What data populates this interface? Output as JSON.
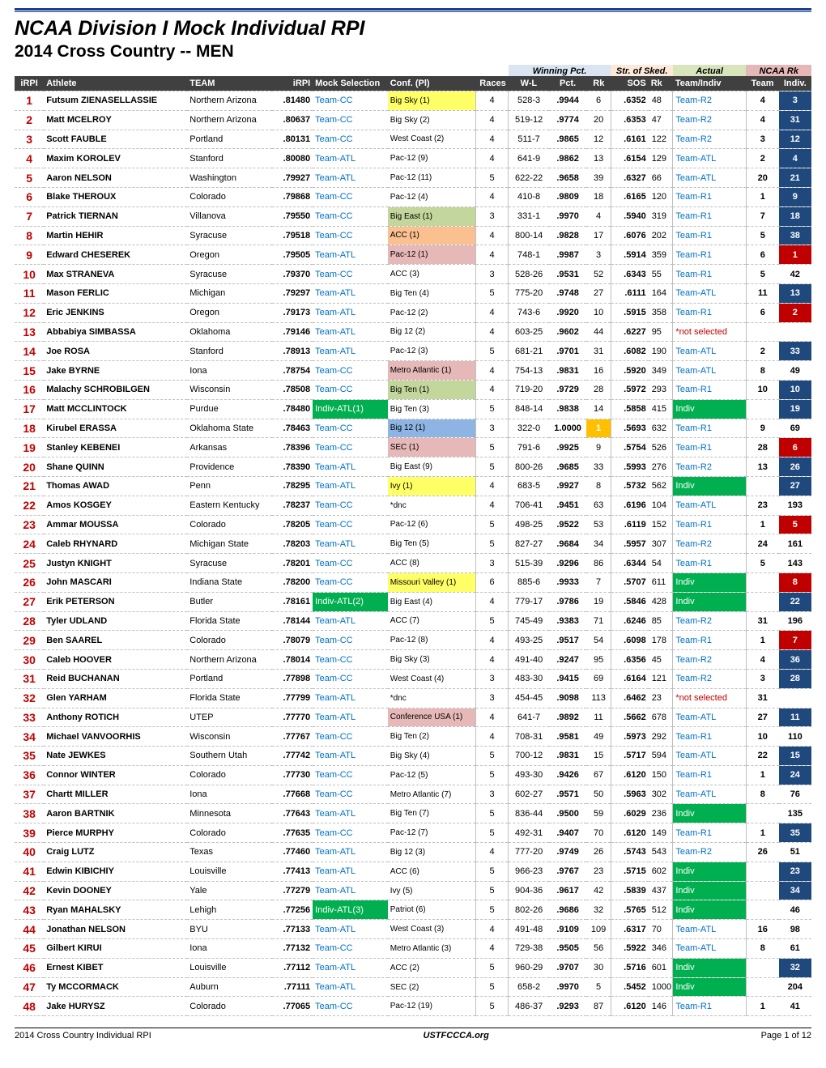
{
  "title": "NCAA Division I Mock Individual RPI",
  "subtitle": "2014 Cross Country -- MEN",
  "group_headers": {
    "winning": "Winning Pct.",
    "str": "Str. of Sked.",
    "actual": "Actual",
    "ncaa": "NCAA Rk"
  },
  "columns": [
    "iRPI",
    "Athlete",
    "TEAM",
    "iRPI",
    "Mock Selection",
    "Conf. (Pl)",
    "Races",
    "W-L",
    "Pct.",
    "Rk",
    "SOS",
    "Rk",
    "Team/Indiv",
    "Team",
    "Indiv."
  ],
  "colors": {
    "rule": "#1c3f94",
    "hdr_bg": "#404040",
    "hdr_fg": "#ffffff",
    "irpi_fg": "#c00000",
    "link_fg": "#0070c0",
    "grp_win_bg": "#dbe5f1",
    "grp_str_bg": "#fde9d9",
    "grp_act_bg": "#d8e4bc",
    "grp_ncaa_bg": "#e5b8b7",
    "dash_border": "#bfbfbf",
    "conf_yellow": "#ffff66",
    "conf_orange": "#fac090",
    "conf_green": "#c3d69b",
    "conf_blue": "#8db4e2",
    "conf_red": "#e6b9b8",
    "rk_hi_bg": "#ffc000",
    "mock_green_bg": "#00b050",
    "act_green_bg": "#00b050",
    "ind_blue_bg": "#1f497d",
    "ind_red_bg": "#c00000",
    "not_selected_fg": "#c00000"
  },
  "footer": {
    "left": "2014 Cross Country Individual RPI",
    "center": "USTFCCCA.org",
    "right": "Page 1 of 12"
  },
  "rows": [
    {
      "n": 1,
      "ath": "Futsum ZIENASELLASSIE",
      "team": "Northern Arizona",
      "irpi": ".81480",
      "mock": "Team-CC",
      "conf": "Big Sky (1)",
      "conf_bg": "#ffff66",
      "races": 4,
      "wl": "528-3",
      "pct": ".9944",
      "rk": 6,
      "sos": ".6352",
      "sosrk": 48,
      "act": "Team-R2",
      "nteam": "4",
      "nind": "3",
      "nind_bg": "#1f497d"
    },
    {
      "n": 2,
      "ath": "Matt MCELROY",
      "team": "Northern Arizona",
      "irpi": ".80637",
      "mock": "Team-CC",
      "conf": "Big Sky (2)",
      "races": 4,
      "wl": "519-12",
      "pct": ".9774",
      "rk": 20,
      "sos": ".6353",
      "sosrk": 47,
      "act": "Team-R2",
      "nteam": "4",
      "nind": "31",
      "nind_bg": "#1f497d"
    },
    {
      "n": 3,
      "ath": "Scott FAUBLE",
      "team": "Portland",
      "irpi": ".80131",
      "mock": "Team-CC",
      "conf": "West Coast (2)",
      "races": 4,
      "wl": "511-7",
      "pct": ".9865",
      "rk": 12,
      "sos": ".6161",
      "sosrk": 122,
      "act": "Team-R2",
      "nteam": "3",
      "nind": "12",
      "nind_bg": "#1f497d"
    },
    {
      "n": 4,
      "ath": "Maxim KOROLEV",
      "team": "Stanford",
      "irpi": ".80080",
      "mock": "Team-ATL",
      "conf": "Pac-12 (9)",
      "races": 4,
      "wl": "641-9",
      "pct": ".9862",
      "rk": 13,
      "sos": ".6154",
      "sosrk": 129,
      "act": "Team-ATL",
      "nteam": "2",
      "nind": "4",
      "nind_bg": "#1f497d"
    },
    {
      "n": 5,
      "ath": "Aaron NELSON",
      "team": "Washington",
      "irpi": ".79927",
      "mock": "Team-ATL",
      "conf": "Pac-12 (11)",
      "races": 5,
      "wl": "622-22",
      "pct": ".9658",
      "rk": 39,
      "sos": ".6327",
      "sosrk": 66,
      "act": "Team-ATL",
      "nteam": "20",
      "nind": "21",
      "nind_bg": "#1f497d"
    },
    {
      "n": 6,
      "ath": "Blake THEROUX",
      "team": "Colorado",
      "irpi": ".79868",
      "mock": "Team-CC",
      "conf": "Pac-12 (4)",
      "races": 4,
      "wl": "410-8",
      "pct": ".9809",
      "rk": 18,
      "sos": ".6165",
      "sosrk": 120,
      "act": "Team-R1",
      "nteam": "1",
      "nind": "9",
      "nind_bg": "#1f497d"
    },
    {
      "n": 7,
      "ath": "Patrick TIERNAN",
      "team": "Villanova",
      "irpi": ".79550",
      "mock": "Team-CC",
      "conf": "Big East (1)",
      "conf_bg": "#c3d69b",
      "races": 3,
      "wl": "331-1",
      "pct": ".9970",
      "rk": 4,
      "sos": ".5940",
      "sosrk": 319,
      "act": "Team-R1",
      "nteam": "7",
      "nind": "18",
      "nind_bg": "#1f497d"
    },
    {
      "n": 8,
      "ath": "Martin HEHIR",
      "team": "Syracuse",
      "irpi": ".79518",
      "mock": "Team-CC",
      "conf": "ACC (1)",
      "conf_bg": "#fac090",
      "races": 4,
      "wl": "800-14",
      "pct": ".9828",
      "rk": 17,
      "sos": ".6076",
      "sosrk": 202,
      "act": "Team-R1",
      "nteam": "5",
      "nind": "38",
      "nind_bg": "#1f497d"
    },
    {
      "n": 9,
      "ath": "Edward CHESEREK",
      "team": "Oregon",
      "irpi": ".79505",
      "mock": "Team-ATL",
      "conf": "Pac-12 (1)",
      "conf_bg": "#e6b9b8",
      "races": 4,
      "wl": "748-1",
      "pct": ".9987",
      "rk": 3,
      "sos": ".5914",
      "sosrk": 359,
      "act": "Team-R1",
      "nteam": "6",
      "nind": "1",
      "nind_bg": "#c00000"
    },
    {
      "n": 10,
      "ath": "Max STRANEVA",
      "team": "Syracuse",
      "irpi": ".79370",
      "mock": "Team-CC",
      "conf": "ACC (3)",
      "races": 3,
      "wl": "528-26",
      "pct": ".9531",
      "rk": 52,
      "sos": ".6343",
      "sosrk": 55,
      "act": "Team-R1",
      "nteam": "5",
      "nind": "42",
      "nind_plain": true
    },
    {
      "n": 11,
      "ath": "Mason FERLIC",
      "team": "Michigan",
      "irpi": ".79297",
      "mock": "Team-ATL",
      "conf": "Big Ten (4)",
      "races": 5,
      "wl": "775-20",
      "pct": ".9748",
      "rk": 27,
      "sos": ".6111",
      "sosrk": 164,
      "act": "Team-ATL",
      "nteam": "11",
      "nind": "13",
      "nind_bg": "#1f497d"
    },
    {
      "n": 12,
      "ath": "Eric JENKINS",
      "team": "Oregon",
      "irpi": ".79173",
      "mock": "Team-ATL",
      "conf": "Pac-12 (2)",
      "races": 4,
      "wl": "743-6",
      "pct": ".9920",
      "rk": 10,
      "sos": ".5915",
      "sosrk": 358,
      "act": "Team-R1",
      "nteam": "6",
      "nind": "2",
      "nind_bg": "#c00000"
    },
    {
      "n": 13,
      "ath": "Abbabiya SIMBASSA",
      "team": "Oklahoma",
      "irpi": ".79146",
      "mock": "Team-ATL",
      "conf": "Big 12 (2)",
      "races": 4,
      "wl": "603-25",
      "pct": ".9602",
      "rk": 44,
      "sos": ".6227",
      "sosrk": 95,
      "act": "*not selected",
      "act_red": true,
      "nteam": "",
      "nind": "",
      "nind_plain": true
    },
    {
      "n": 14,
      "ath": "Joe ROSA",
      "team": "Stanford",
      "irpi": ".78913",
      "mock": "Team-ATL",
      "conf": "Pac-12 (3)",
      "races": 5,
      "wl": "681-21",
      "pct": ".9701",
      "rk": 31,
      "sos": ".6082",
      "sosrk": 190,
      "act": "Team-ATL",
      "nteam": "2",
      "nind": "33",
      "nind_bg": "#1f497d"
    },
    {
      "n": 15,
      "ath": "Jake BYRNE",
      "team": "Iona",
      "irpi": ".78754",
      "mock": "Team-CC",
      "conf": "Metro Atlantic (1)",
      "conf_bg": "#e6b9b8",
      "races": 4,
      "wl": "754-13",
      "pct": ".9831",
      "rk": 16,
      "sos": ".5920",
      "sosrk": 349,
      "act": "Team-ATL",
      "nteam": "8",
      "nind": "49",
      "nind_plain": true
    },
    {
      "n": 16,
      "ath": "Malachy SCHROBILGEN",
      "team": "Wisconsin",
      "irpi": ".78508",
      "mock": "Team-CC",
      "conf": "Big Ten (1)",
      "conf_bg": "#c3d69b",
      "races": 4,
      "wl": "719-20",
      "pct": ".9729",
      "rk": 28,
      "sos": ".5972",
      "sosrk": 293,
      "act": "Team-R1",
      "nteam": "10",
      "nind": "10",
      "nind_bg": "#1f497d"
    },
    {
      "n": 17,
      "ath": "Matt MCCLINTOCK",
      "team": "Purdue",
      "irpi": ".78480",
      "mock": "Indiv-ATL(1)",
      "mock_hi": "#00b050",
      "conf": "Big Ten (3)",
      "races": 5,
      "wl": "848-14",
      "pct": ".9838",
      "rk": 14,
      "sos": ".5858",
      "sosrk": 415,
      "act": "Indiv",
      "act_hi": "#00b050",
      "nteam": "",
      "nind": "19",
      "nind_bg": "#1f497d"
    },
    {
      "n": 18,
      "ath": "Kirubel ERASSA",
      "team": "Oklahoma State",
      "irpi": ".78463",
      "mock": "Team-CC",
      "conf": "Big 12 (1)",
      "conf_bg": "#8db4e2",
      "races": 3,
      "wl": "322-0",
      "pct": "1.0000",
      "rk": 1,
      "rk_hi": true,
      "sos": ".5693",
      "sosrk": 632,
      "act": "Team-R1",
      "nteam": "9",
      "nind": "69",
      "nind_plain": true
    },
    {
      "n": 19,
      "ath": "Stanley KEBENEI",
      "team": "Arkansas",
      "irpi": ".78396",
      "mock": "Team-CC",
      "conf": "SEC (1)",
      "conf_bg": "#e6b9b8",
      "races": 5,
      "wl": "791-6",
      "pct": ".9925",
      "rk": 9,
      "sos": ".5754",
      "sosrk": 526,
      "act": "Team-R1",
      "nteam": "28",
      "nind": "6",
      "nind_bg": "#c00000"
    },
    {
      "n": 20,
      "ath": "Shane QUINN",
      "team": "Providence",
      "irpi": ".78390",
      "mock": "Team-ATL",
      "conf": "Big East (9)",
      "races": 5,
      "wl": "800-26",
      "pct": ".9685",
      "rk": 33,
      "sos": ".5993",
      "sosrk": 276,
      "act": "Team-R2",
      "nteam": "13",
      "nind": "26",
      "nind_bg": "#1f497d"
    },
    {
      "n": 21,
      "ath": "Thomas AWAD",
      "team": "Penn",
      "irpi": ".78295",
      "mock": "Team-ATL",
      "conf": "Ivy (1)",
      "conf_bg": "#ffff66",
      "races": 4,
      "wl": "683-5",
      "pct": ".9927",
      "rk": 8,
      "sos": ".5732",
      "sosrk": 562,
      "act": "Indiv",
      "act_hi": "#00b050",
      "nteam": "",
      "nind": "27",
      "nind_bg": "#1f497d"
    },
    {
      "n": 22,
      "ath": "Amos KOSGEY",
      "team": "Eastern Kentucky",
      "irpi": ".78237",
      "mock": "Team-CC",
      "conf": "*dnc",
      "races": 4,
      "wl": "706-41",
      "pct": ".9451",
      "rk": 63,
      "sos": ".6196",
      "sosrk": 104,
      "act": "Team-ATL",
      "nteam": "23",
      "nind": "193",
      "nind_plain": true
    },
    {
      "n": 23,
      "ath": "Ammar MOUSSA",
      "team": "Colorado",
      "irpi": ".78205",
      "mock": "Team-CC",
      "conf": "Pac-12 (6)",
      "races": 5,
      "wl": "498-25",
      "pct": ".9522",
      "rk": 53,
      "sos": ".6119",
      "sosrk": 152,
      "act": "Team-R1",
      "nteam": "1",
      "nind": "5",
      "nind_bg": "#c00000"
    },
    {
      "n": 24,
      "ath": "Caleb RHYNARD",
      "team": "Michigan State",
      "irpi": ".78203",
      "mock": "Team-ATL",
      "conf": "Big Ten (5)",
      "races": 5,
      "wl": "827-27",
      "pct": ".9684",
      "rk": 34,
      "sos": ".5957",
      "sosrk": 307,
      "act": "Team-R2",
      "nteam": "24",
      "nind": "161",
      "nind_plain": true
    },
    {
      "n": 25,
      "ath": "Justyn KNIGHT",
      "team": "Syracuse",
      "irpi": ".78201",
      "mock": "Team-CC",
      "conf": "ACC (8)",
      "races": 3,
      "wl": "515-39",
      "pct": ".9296",
      "rk": 86,
      "sos": ".6344",
      "sosrk": 54,
      "act": "Team-R1",
      "nteam": "5",
      "nind": "143",
      "nind_plain": true
    },
    {
      "n": 26,
      "ath": "John MASCARI",
      "team": "Indiana State",
      "irpi": ".78200",
      "mock": "Team-CC",
      "conf": "Missouri Valley (1)",
      "conf_bg": "#ffff66",
      "races": 6,
      "wl": "885-6",
      "pct": ".9933",
      "rk": 7,
      "sos": ".5707",
      "sosrk": 611,
      "act": "Indiv",
      "act_hi": "#00b050",
      "nteam": "",
      "nind": "8",
      "nind_bg": "#c00000"
    },
    {
      "n": 27,
      "ath": "Erik PETERSON",
      "team": "Butler",
      "irpi": ".78161",
      "mock": "Indiv-ATL(2)",
      "mock_hi": "#00b050",
      "conf": "Big East (4)",
      "races": 4,
      "wl": "779-17",
      "pct": ".9786",
      "rk": 19,
      "sos": ".5846",
      "sosrk": 428,
      "act": "Indiv",
      "act_hi": "#00b050",
      "nteam": "",
      "nind": "22",
      "nind_bg": "#1f497d"
    },
    {
      "n": 28,
      "ath": "Tyler UDLAND",
      "team": "Florida State",
      "irpi": ".78144",
      "mock": "Team-ATL",
      "conf": "ACC (7)",
      "races": 5,
      "wl": "745-49",
      "pct": ".9383",
      "rk": 71,
      "sos": ".6246",
      "sosrk": 85,
      "act": "Team-R2",
      "nteam": "31",
      "nind": "196",
      "nind_plain": true
    },
    {
      "n": 29,
      "ath": "Ben SAAREL",
      "team": "Colorado",
      "irpi": ".78079",
      "mock": "Team-CC",
      "conf": "Pac-12 (8)",
      "races": 4,
      "wl": "493-25",
      "pct": ".9517",
      "rk": 54,
      "sos": ".6098",
      "sosrk": 178,
      "act": "Team-R1",
      "nteam": "1",
      "nind": "7",
      "nind_bg": "#c00000"
    },
    {
      "n": 30,
      "ath": "Caleb HOOVER",
      "team": "Northern Arizona",
      "irpi": ".78014",
      "mock": "Team-CC",
      "conf": "Big Sky (3)",
      "races": 4,
      "wl": "491-40",
      "pct": ".9247",
      "rk": 95,
      "sos": ".6356",
      "sosrk": 45,
      "act": "Team-R2",
      "nteam": "4",
      "nind": "36",
      "nind_bg": "#1f497d"
    },
    {
      "n": 31,
      "ath": "Reid BUCHANAN",
      "team": "Portland",
      "irpi": ".77898",
      "mock": "Team-CC",
      "conf": "West Coast (4)",
      "races": 3,
      "wl": "483-30",
      "pct": ".9415",
      "rk": 69,
      "sos": ".6164",
      "sosrk": 121,
      "act": "Team-R2",
      "nteam": "3",
      "nind": "28",
      "nind_bg": "#1f497d"
    },
    {
      "n": 32,
      "ath": "Glen YARHAM",
      "team": "Florida State",
      "irpi": ".77799",
      "mock": "Team-ATL",
      "conf": "*dnc",
      "races": 3,
      "wl": "454-45",
      "pct": ".9098",
      "rk": 113,
      "sos": ".6462",
      "sosrk": 23,
      "act": "*not selected",
      "act_red": true,
      "nteam": "31",
      "nind": "",
      "nind_plain": true
    },
    {
      "n": 33,
      "ath": "Anthony ROTICH",
      "team": "UTEP",
      "irpi": ".77770",
      "mock": "Team-ATL",
      "conf": "Conference USA (1)",
      "conf_bg": "#e6b9b8",
      "races": 4,
      "wl": "641-7",
      "pct": ".9892",
      "rk": 11,
      "sos": ".5662",
      "sosrk": 678,
      "act": "Team-ATL",
      "nteam": "27",
      "nind": "11",
      "nind_bg": "#1f497d"
    },
    {
      "n": 34,
      "ath": "Michael VANVOORHIS",
      "team": "Wisconsin",
      "irpi": ".77767",
      "mock": "Team-CC",
      "conf": "Big Ten (2)",
      "races": 4,
      "wl": "708-31",
      "pct": ".9581",
      "rk": 49,
      "sos": ".5973",
      "sosrk": 292,
      "act": "Team-R1",
      "nteam": "10",
      "nind": "110",
      "nind_plain": true
    },
    {
      "n": 35,
      "ath": "Nate JEWKES",
      "team": "Southern Utah",
      "irpi": ".77742",
      "mock": "Team-ATL",
      "conf": "Big Sky (4)",
      "races": 5,
      "wl": "700-12",
      "pct": ".9831",
      "rk": 15,
      "sos": ".5717",
      "sosrk": 594,
      "act": "Team-ATL",
      "nteam": "22",
      "nind": "15",
      "nind_bg": "#1f497d"
    },
    {
      "n": 36,
      "ath": "Connor WINTER",
      "team": "Colorado",
      "irpi": ".77730",
      "mock": "Team-CC",
      "conf": "Pac-12 (5)",
      "races": 5,
      "wl": "493-30",
      "pct": ".9426",
      "rk": 67,
      "sos": ".6120",
      "sosrk": 150,
      "act": "Team-R1",
      "nteam": "1",
      "nind": "24",
      "nind_bg": "#1f497d"
    },
    {
      "n": 37,
      "ath": "Chartt MILLER",
      "team": "Iona",
      "irpi": ".77668",
      "mock": "Team-CC",
      "conf": "Metro Atlantic (7)",
      "races": 3,
      "wl": "602-27",
      "pct": ".9571",
      "rk": 50,
      "sos": ".5963",
      "sosrk": 302,
      "act": "Team-ATL",
      "nteam": "8",
      "nind": "76",
      "nind_plain": true
    },
    {
      "n": 38,
      "ath": "Aaron BARTNIK",
      "team": "Minnesota",
      "irpi": ".77643",
      "mock": "Team-ATL",
      "conf": "Big Ten (7)",
      "races": 5,
      "wl": "836-44",
      "pct": ".9500",
      "rk": 59,
      "sos": ".6029",
      "sosrk": 236,
      "act": "Indiv",
      "act_hi": "#00b050",
      "nteam": "",
      "nind": "135",
      "nind_plain": true
    },
    {
      "n": 39,
      "ath": "Pierce MURPHY",
      "team": "Colorado",
      "irpi": ".77635",
      "mock": "Team-CC",
      "conf": "Pac-12 (7)",
      "races": 5,
      "wl": "492-31",
      "pct": ".9407",
      "rk": 70,
      "sos": ".6120",
      "sosrk": 149,
      "act": "Team-R1",
      "nteam": "1",
      "nind": "35",
      "nind_bg": "#1f497d"
    },
    {
      "n": 40,
      "ath": "Craig LUTZ",
      "team": "Texas",
      "irpi": ".77460",
      "mock": "Team-ATL",
      "conf": "Big 12 (3)",
      "races": 4,
      "wl": "777-20",
      "pct": ".9749",
      "rk": 26,
      "sos": ".5743",
      "sosrk": 543,
      "act": "Team-R2",
      "nteam": "26",
      "nind": "51",
      "nind_plain": true
    },
    {
      "n": 41,
      "ath": "Edwin KIBICHIY",
      "team": "Louisville",
      "irpi": ".77413",
      "mock": "Team-ATL",
      "conf": "ACC (6)",
      "races": 5,
      "wl": "966-23",
      "pct": ".9767",
      "rk": 23,
      "sos": ".5715",
      "sosrk": 602,
      "act": "Indiv",
      "act_hi": "#00b050",
      "nteam": "",
      "nind": "23",
      "nind_bg": "#1f497d"
    },
    {
      "n": 42,
      "ath": "Kevin DOONEY",
      "team": "Yale",
      "irpi": ".77279",
      "mock": "Team-ATL",
      "conf": "Ivy (5)",
      "races": 5,
      "wl": "904-36",
      "pct": ".9617",
      "rk": 42,
      "sos": ".5839",
      "sosrk": 437,
      "act": "Indiv",
      "act_hi": "#00b050",
      "nteam": "",
      "nind": "34",
      "nind_bg": "#1f497d"
    },
    {
      "n": 43,
      "ath": "Ryan MAHALSKY",
      "team": "Lehigh",
      "irpi": ".77256",
      "mock": "Indiv-ATL(3)",
      "mock_hi": "#00b050",
      "conf": "Patriot (6)",
      "races": 5,
      "wl": "802-26",
      "pct": ".9686",
      "rk": 32,
      "sos": ".5765",
      "sosrk": 512,
      "act": "Indiv",
      "act_hi": "#00b050",
      "nteam": "",
      "nind": "46",
      "nind_plain": true
    },
    {
      "n": 44,
      "ath": "Jonathan NELSON",
      "team": "BYU",
      "irpi": ".77133",
      "mock": "Team-ATL",
      "conf": "West Coast (3)",
      "races": 4,
      "wl": "491-48",
      "pct": ".9109",
      "rk": 109,
      "sos": ".6317",
      "sosrk": 70,
      "act": "Team-ATL",
      "nteam": "16",
      "nind": "98",
      "nind_plain": true
    },
    {
      "n": 45,
      "ath": "Gilbert KIRUI",
      "team": "Iona",
      "irpi": ".77132",
      "mock": "Team-CC",
      "conf": "Metro Atlantic (3)",
      "races": 4,
      "wl": "729-38",
      "pct": ".9505",
      "rk": 56,
      "sos": ".5922",
      "sosrk": 346,
      "act": "Team-ATL",
      "nteam": "8",
      "nind": "61",
      "nind_plain": true
    },
    {
      "n": 46,
      "ath": "Ernest KIBET",
      "team": "Louisville",
      "irpi": ".77112",
      "mock": "Team-ATL",
      "conf": "ACC (2)",
      "races": 5,
      "wl": "960-29",
      "pct": ".9707",
      "rk": 30,
      "sos": ".5716",
      "sosrk": 601,
      "act": "Indiv",
      "act_hi": "#00b050",
      "nteam": "",
      "nind": "32",
      "nind_bg": "#1f497d"
    },
    {
      "n": 47,
      "ath": "Ty MCCORMACK",
      "team": "Auburn",
      "irpi": ".77111",
      "mock": "Team-ATL",
      "conf": "SEC (2)",
      "races": 5,
      "wl": "658-2",
      "pct": ".9970",
      "rk": 5,
      "sos": ".5452",
      "sosrk": 1000,
      "act": "Indiv",
      "act_hi": "#00b050",
      "nteam": "",
      "nind": "204",
      "nind_plain": true
    },
    {
      "n": 48,
      "ath": "Jake HURYSZ",
      "team": "Colorado",
      "irpi": ".77065",
      "mock": "Team-CC",
      "conf": "Pac-12 (19)",
      "races": 5,
      "wl": "486-37",
      "pct": ".9293",
      "rk": 87,
      "sos": ".6120",
      "sosrk": 146,
      "act": "Team-R1",
      "nteam": "1",
      "nind": "41",
      "nind_plain": true
    }
  ]
}
